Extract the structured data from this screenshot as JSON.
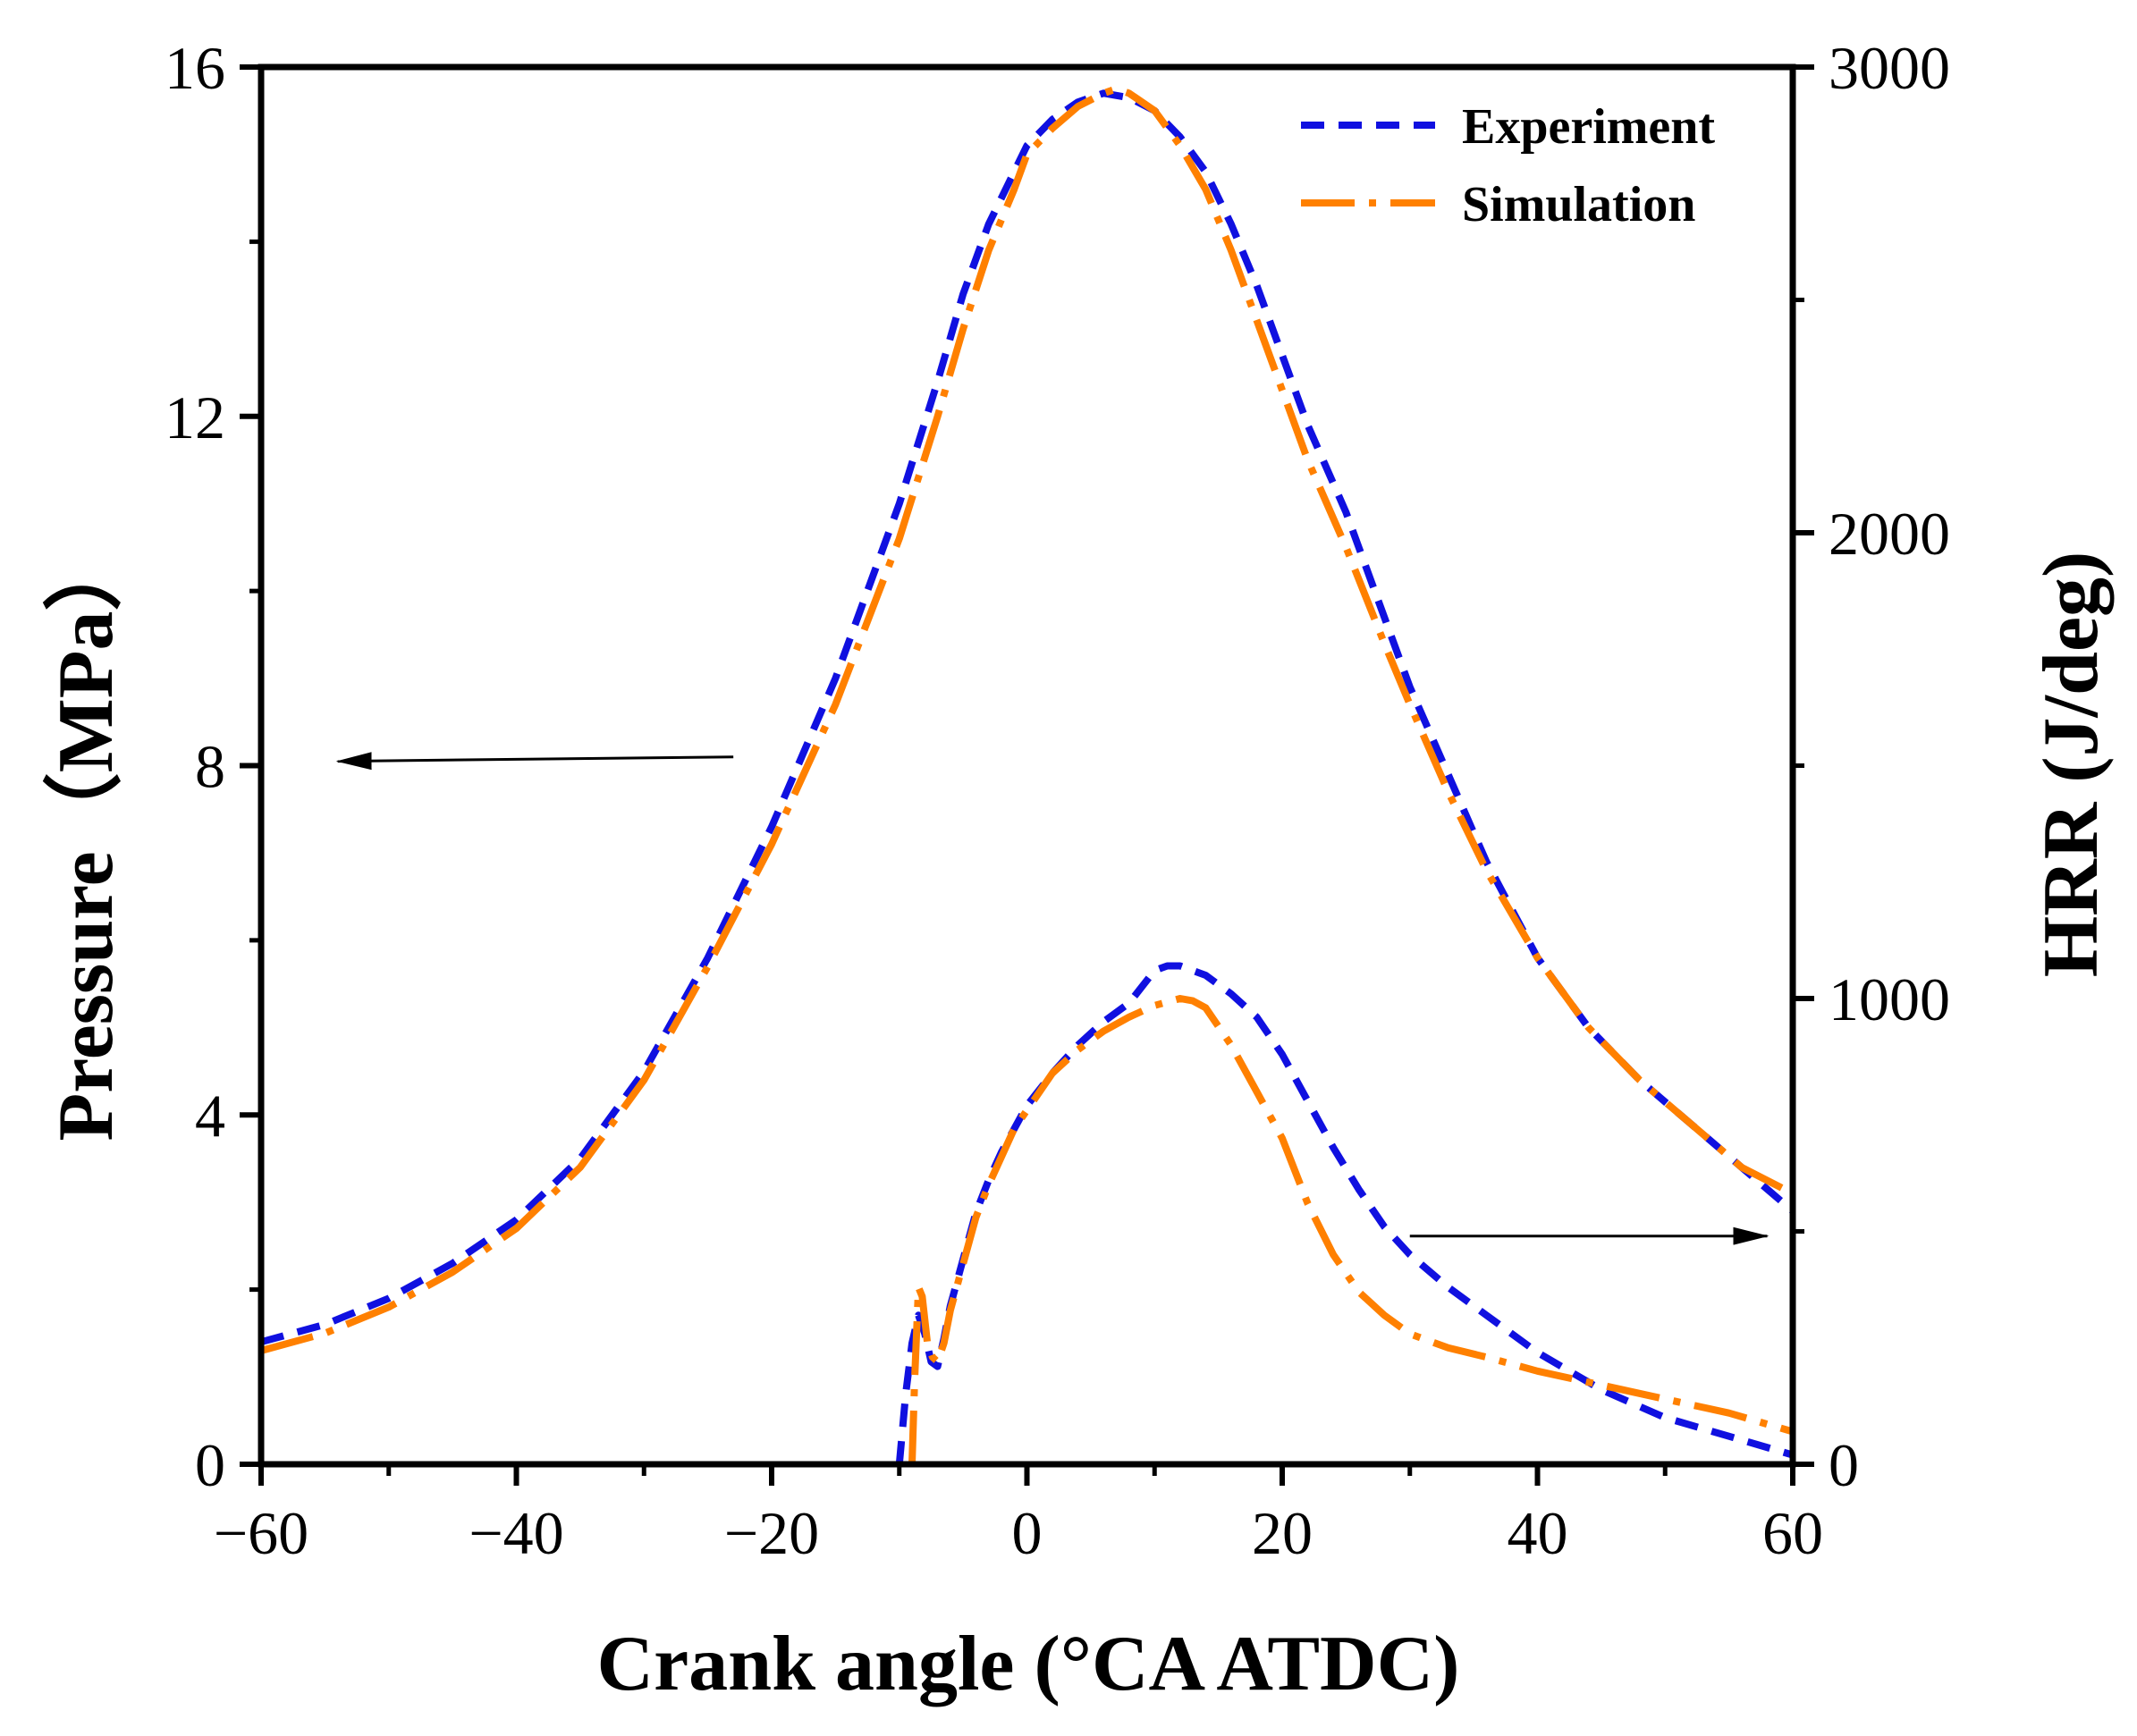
{
  "chart_data": {
    "type": "line",
    "title": "",
    "xlabel": "Crank angle (°CA ATDC)",
    "ylabel_left": "Pressure（MPa）",
    "ylabel_right": "HRR (J/deg)",
    "xlim": [
      -60,
      60
    ],
    "ylim_left": [
      0,
      16
    ],
    "ylim_right": [
      0,
      3000
    ],
    "x_ticks": [
      -60,
      -40,
      -20,
      0,
      20,
      40,
      60
    ],
    "x_tick_labels": [
      "−60",
      "−40",
      "−20",
      "0",
      "20",
      "40",
      "60"
    ],
    "y_left_ticks": [
      0,
      4,
      8,
      12,
      16
    ],
    "y_left_tick_labels": [
      "0",
      "4",
      "8",
      "12",
      "16"
    ],
    "y_right_ticks": [
      0,
      1000,
      2000,
      3000
    ],
    "y_right_tick_labels": [
      "0",
      "1000",
      "2000",
      "3000"
    ],
    "grid": false,
    "legend_position": "top-right",
    "colors": {
      "experiment": "#1010e0",
      "simulation": "#ff8000",
      "axis": "#000000"
    },
    "annotations": [
      {
        "type": "arrow",
        "label": "pressure-axis-arrow",
        "from": [
          -23,
          8.1
        ],
        "to": [
          -54,
          8.05
        ],
        "axis": "left"
      },
      {
        "type": "arrow",
        "label": "hrr-axis-arrow",
        "from": [
          30,
          490
        ],
        "to": [
          58,
          490
        ],
        "axis": "right"
      }
    ],
    "series": [
      {
        "name": "Experiment",
        "kind": "pressure",
        "axis": "left",
        "style": "dashed",
        "x": [
          -60,
          -55,
          -50,
          -45,
          -40,
          -35,
          -30,
          -25,
          -20,
          -15,
          -10,
          -7,
          -5,
          -3,
          -1,
          0,
          2,
          4,
          6,
          8,
          10,
          12,
          14,
          16,
          18,
          20,
          22,
          25,
          28,
          30,
          33,
          36,
          40,
          44,
          48,
          52,
          56,
          60
        ],
        "y": [
          1.4,
          1.6,
          1.9,
          2.3,
          2.8,
          3.5,
          4.5,
          5.8,
          7.3,
          9.0,
          11.0,
          12.4,
          13.4,
          14.2,
          14.8,
          15.1,
          15.4,
          15.6,
          15.7,
          15.65,
          15.5,
          15.2,
          14.8,
          14.2,
          13.5,
          12.7,
          11.9,
          10.9,
          9.7,
          8.9,
          7.9,
          6.9,
          5.8,
          5.0,
          4.4,
          3.9,
          3.4,
          2.9
        ]
      },
      {
        "name": "Simulation",
        "kind": "pressure",
        "axis": "left",
        "style": "dash-dot",
        "x": [
          -60,
          -55,
          -50,
          -45,
          -40,
          -35,
          -30,
          -25,
          -20,
          -15,
          -10,
          -7,
          -5,
          -3,
          -1,
          0,
          2,
          4,
          6,
          7,
          8,
          10,
          12,
          14,
          16,
          18,
          20,
          22,
          25,
          28,
          30,
          33,
          36,
          40,
          44,
          48,
          52,
          56,
          60
        ],
        "y": [
          1.3,
          1.5,
          1.8,
          2.2,
          2.7,
          3.4,
          4.4,
          5.7,
          7.1,
          8.7,
          10.6,
          12.0,
          13.0,
          13.9,
          14.6,
          15.0,
          15.3,
          15.55,
          15.7,
          15.75,
          15.7,
          15.5,
          15.1,
          14.6,
          13.9,
          13.1,
          12.3,
          11.5,
          10.5,
          9.4,
          8.7,
          7.7,
          6.8,
          5.8,
          5.0,
          4.4,
          3.9,
          3.4,
          3.1
        ]
      },
      {
        "name": "Experiment",
        "kind": "hrr",
        "axis": "right",
        "style": "dashed",
        "x": [
          -10,
          -9.5,
          -9,
          -8.5,
          -8,
          -7.5,
          -7,
          -6.5,
          -6,
          -5,
          -4,
          -3,
          -2,
          -1,
          0,
          2,
          4,
          6,
          8,
          10,
          11,
          12,
          14,
          16,
          18,
          20,
          22,
          24,
          26,
          28,
          30,
          33,
          36,
          40,
          45,
          50,
          55,
          60
        ],
        "y": [
          0,
          150,
          260,
          320,
          280,
          220,
          210,
          270,
          340,
          440,
          540,
          610,
          670,
          720,
          770,
          840,
          900,
          950,
          990,
          1060,
          1070,
          1070,
          1050,
          1010,
          960,
          880,
          780,
          680,
          590,
          510,
          450,
          380,
          320,
          240,
          160,
          100,
          60,
          20
        ]
      },
      {
        "name": "Simulation",
        "kind": "hrr",
        "axis": "right",
        "style": "dash-dot",
        "x": [
          -9,
          -8.8,
          -8.5,
          -8.2,
          -7.8,
          -7.4,
          -7,
          -6.5,
          -6,
          -5,
          -4,
          -3,
          -2,
          -1,
          0,
          2,
          4,
          6,
          8,
          10,
          12,
          13,
          14,
          16,
          18,
          20,
          22,
          24,
          26,
          28,
          30,
          33,
          36,
          40,
          45,
          50,
          55,
          60
        ],
        "y": [
          0,
          180,
          380,
          360,
          260,
          230,
          220,
          260,
          330,
          430,
          530,
          600,
          660,
          720,
          760,
          840,
          890,
          930,
          960,
          985,
          1000,
          995,
          980,
          900,
          800,
          700,
          560,
          450,
          370,
          320,
          280,
          250,
          230,
          200,
          170,
          140,
          110,
          70
        ]
      }
    ]
  }
}
